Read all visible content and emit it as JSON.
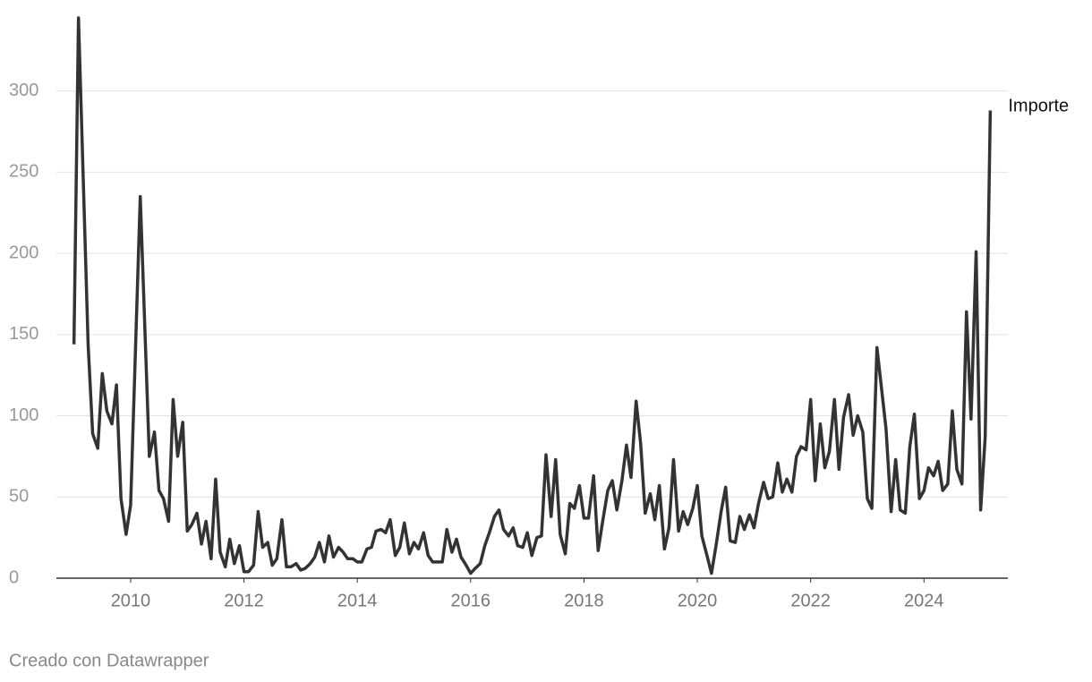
{
  "chart_data": {
    "type": "line",
    "footer": "Creado con Datawrapper",
    "xlim": [
      2008.69,
      2025.48
    ],
    "xticks": [
      2010,
      2012,
      2014,
      2016,
      2018,
      2020,
      2022,
      2024
    ],
    "ylim": [
      0,
      345
    ],
    "yticks": [
      0,
      50,
      100,
      150,
      200,
      250,
      300
    ],
    "grid": true,
    "series": [
      {
        "name": "Importe",
        "color": "#333333",
        "x": [
          2009.0,
          2009.08,
          2009.25,
          2009.33,
          2009.42,
          2009.5,
          2009.58,
          2009.67,
          2009.75,
          2009.83,
          2009.92,
          2010.0,
          2010.17,
          2010.25,
          2010.33,
          2010.42,
          2010.5,
          2010.58,
          2010.67,
          2010.75,
          2010.83,
          2010.92,
          2011.0,
          2011.08,
          2011.17,
          2011.25,
          2011.33,
          2011.42,
          2011.5,
          2011.58,
          2011.67,
          2011.75,
          2011.83,
          2011.92,
          2012.0,
          2012.08,
          2012.17,
          2012.25,
          2012.33,
          2012.42,
          2012.5,
          2012.58,
          2012.67,
          2012.75,
          2012.83,
          2012.92,
          2013.0,
          2013.08,
          2013.17,
          2013.25,
          2013.33,
          2013.42,
          2013.5,
          2013.58,
          2013.67,
          2013.75,
          2013.83,
          2013.92,
          2014.0,
          2014.08,
          2014.17,
          2014.25,
          2014.33,
          2014.42,
          2014.5,
          2014.58,
          2014.67,
          2014.75,
          2014.83,
          2014.92,
          2015.0,
          2015.08,
          2015.17,
          2015.25,
          2015.33,
          2015.42,
          2015.5,
          2015.58,
          2015.67,
          2015.75,
          2015.83,
          2015.92,
          2016.0,
          2016.08,
          2016.17,
          2016.25,
          2016.33,
          2016.42,
          2016.5,
          2016.58,
          2016.67,
          2016.75,
          2016.83,
          2016.92,
          2017.0,
          2017.08,
          2017.17,
          2017.25,
          2017.33,
          2017.42,
          2017.5,
          2017.58,
          2017.67,
          2017.75,
          2017.83,
          2017.92,
          2018.0,
          2018.08,
          2018.17,
          2018.25,
          2018.33,
          2018.42,
          2018.5,
          2018.58,
          2018.67,
          2018.75,
          2018.83,
          2018.92,
          2019.0,
          2019.08,
          2019.17,
          2019.25,
          2019.33,
          2019.42,
          2019.5,
          2019.58,
          2019.67,
          2019.75,
          2019.83,
          2019.92,
          2020.0,
          2020.08,
          2020.17,
          2020.25,
          2020.33,
          2020.42,
          2020.5,
          2020.58,
          2020.67,
          2020.75,
          2020.83,
          2020.92,
          2021.0,
          2021.08,
          2021.17,
          2021.25,
          2021.33,
          2021.42,
          2021.5,
          2021.58,
          2021.67,
          2021.75,
          2021.83,
          2021.92,
          2022.0,
          2022.08,
          2022.17,
          2022.25,
          2022.33,
          2022.42,
          2022.5,
          2022.58,
          2022.67,
          2022.75,
          2022.83,
          2022.92,
          2023.0,
          2023.08,
          2023.17,
          2023.25,
          2023.33,
          2023.42,
          2023.5,
          2023.58,
          2023.67,
          2023.75,
          2023.83,
          2023.92,
          2024.0,
          2024.08,
          2024.17,
          2024.25,
          2024.33,
          2024.42,
          2024.5,
          2024.58,
          2024.67,
          2024.75,
          2024.83,
          2024.92,
          2025.0,
          2025.08,
          2025.17
        ],
        "values": [
          144,
          345,
          144,
          89,
          80,
          126,
          103,
          95,
          119,
          49,
          27,
          45,
          235,
          155,
          75,
          90,
          54,
          49,
          35,
          110,
          75,
          96,
          29,
          33,
          40,
          21,
          35,
          12,
          61,
          16,
          7,
          24,
          9,
          20,
          4,
          4,
          8,
          41,
          19,
          22,
          8,
          12,
          36,
          7,
          7,
          9,
          5,
          6,
          9,
          13,
          22,
          10,
          26,
          13,
          19,
          16,
          12,
          12,
          10,
          10,
          18,
          19,
          29,
          30,
          28,
          36,
          14,
          19,
          34,
          15,
          22,
          18,
          28,
          14,
          10,
          10,
          10,
          30,
          16,
          24,
          13,
          8,
          3,
          6,
          9,
          20,
          28,
          38,
          42,
          30,
          26,
          31,
          20,
          19,
          28,
          14,
          25,
          26,
          76,
          38,
          73,
          27,
          15,
          46,
          43,
          57,
          37,
          37,
          63,
          17,
          35,
          54,
          60,
          42,
          60,
          82,
          62,
          109,
          83,
          40,
          52,
          36,
          57,
          18,
          31,
          73,
          29,
          41,
          33,
          43,
          57,
          26,
          14,
          3,
          20,
          41,
          56,
          23,
          22,
          38,
          30,
          39,
          31,
          46,
          59,
          49,
          50,
          71,
          53,
          61,
          53,
          75,
          81,
          79,
          110,
          60,
          95,
          68,
          78,
          110,
          67,
          99,
          113,
          88,
          100,
          90,
          49,
          43,
          142,
          117,
          92,
          41,
          73,
          42,
          40,
          81,
          101,
          49,
          54,
          68,
          63,
          72,
          54,
          58,
          103,
          67,
          58,
          164,
          98,
          201,
          42,
          87,
          288
        ]
      }
    ]
  }
}
